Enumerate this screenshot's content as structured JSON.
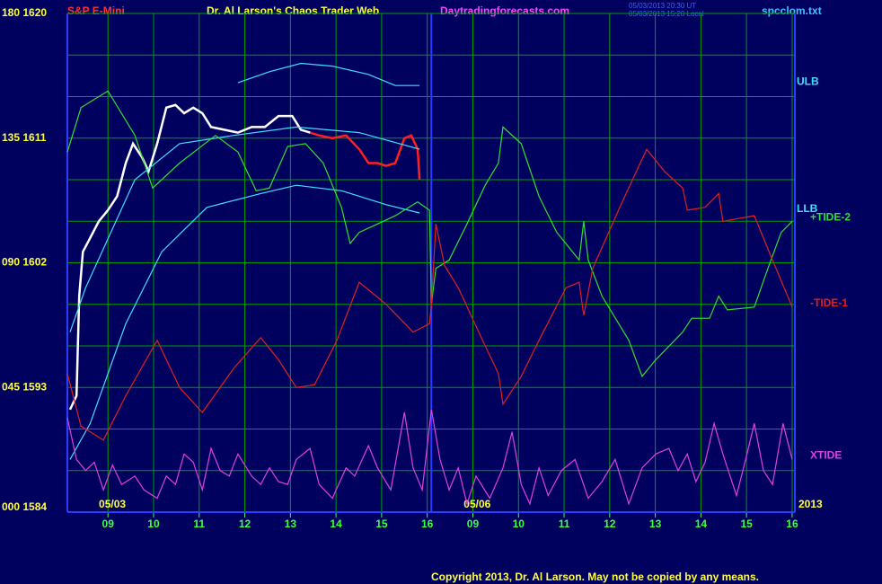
{
  "chart_data": {
    "type": "line",
    "header": {
      "instrument": "S&P E-Mini",
      "title": "Dr. Al Larson's Chaos Trader Web",
      "site": "Daytradingforecasts.com",
      "time_ut": "05/03/2013 20:30 UT",
      "time_local": "05/03/2013 15:20 Local",
      "file": "spcclom.txt"
    },
    "copyright": "Copyright 2013, Dr. Al Larson. May not be copied by any means.",
    "year_label": "2013",
    "xlim": [
      -0.89,
      15.06
    ],
    "ylim": [
      0,
      180
    ],
    "yticks": [
      {
        "value": 0,
        "label": "000 1584"
      },
      {
        "value": 45,
        "label": "045 1593"
      },
      {
        "value": 90,
        "label": "090 1602"
      },
      {
        "value": 135,
        "label": "135 1611"
      },
      {
        "value": 180,
        "label": "180 1620"
      }
    ],
    "ygrid": [
      15,
      30,
      60,
      75,
      105,
      120,
      150,
      165
    ],
    "xticks": [
      {
        "value": 0,
        "label": "09"
      },
      {
        "value": 1,
        "label": "10"
      },
      {
        "value": 2,
        "label": "11"
      },
      {
        "value": 3,
        "label": "12"
      },
      {
        "value": 4,
        "label": "13"
      },
      {
        "value": 5,
        "label": "14"
      },
      {
        "value": 6,
        "label": "15"
      },
      {
        "value": 7,
        "label": "16"
      },
      {
        "value": 8,
        "label": "09"
      },
      {
        "value": 9,
        "label": "10"
      },
      {
        "value": 10,
        "label": "11"
      },
      {
        "value": 11,
        "label": "12"
      },
      {
        "value": 12,
        "label": "13"
      },
      {
        "value": 13,
        "label": "14"
      },
      {
        "value": 14,
        "label": "15"
      },
      {
        "value": 15,
        "label": "16"
      }
    ],
    "date_labels": [
      {
        "value": -0.2,
        "label": "05/03"
      },
      {
        "value": 7.8,
        "label": "05/06"
      }
    ],
    "day_dividers": [
      -0.89,
      7.09,
      15.06
    ],
    "grid": true,
    "series": [
      {
        "color": "#ff2020",
        "x": [
          4.43,
          4.63,
          4.92,
          5.22,
          5.51,
          5.71,
          5.91,
          6.1,
          6.3,
          6.5,
          6.65,
          6.79,
          6.83
        ],
        "values": [
          137,
          136,
          135,
          136,
          131,
          126,
          126,
          125,
          126,
          135,
          136,
          131,
          120
        ]
      },
      {
        "color": "#ffffff",
        "x": [
          -0.83,
          -0.69,
          -0.63,
          -0.55,
          -0.39,
          -0.2,
          0,
          0.2,
          0.39,
          0.55,
          0.75,
          0.89,
          1.08,
          1.28,
          1.48,
          1.67,
          1.87,
          2.07,
          2.26,
          2.56,
          2.85,
          3.15,
          3.44,
          3.74,
          4.04,
          4.23,
          4.43
        ],
        "values": [
          37,
          42,
          78,
          94,
          99,
          105,
          109,
          114,
          126,
          133,
          128,
          123,
          133,
          146,
          147,
          144,
          146,
          144,
          139,
          138,
          137,
          139,
          139,
          143,
          143,
          138,
          137
        ]
      },
      {
        "name": "ULB",
        "color": "#40e0ff",
        "x": [
          2.85,
          3.54,
          4.23,
          4.92,
          5.71,
          6.3,
          6.83
        ],
        "values": [
          155,
          159,
          162,
          161,
          158,
          154,
          154
        ]
      },
      {
        "color": "#40e0ff",
        "x": [
          -0.83,
          -0.49,
          0.59,
          1.57,
          2.76,
          4.13,
          5.51,
          6.83
        ],
        "values": [
          65,
          81,
          120,
          133,
          136,
          139,
          137,
          131
        ]
      },
      {
        "name": "LLB",
        "color": "#40e0ff",
        "x": [
          -0.83,
          -0.39,
          0.39,
          1.18,
          2.17,
          3.35,
          4.13,
          5.12,
          6.1,
          6.83
        ],
        "values": [
          19,
          32,
          68,
          94,
          110,
          115,
          118,
          116,
          111,
          108
        ]
      },
      {
        "name": "+TIDE-2",
        "color": "#30e030",
        "x": [
          -0.89,
          -0.59,
          0,
          0.59,
          0.98,
          1.57,
          2.36,
          2.85,
          3.25,
          3.54,
          3.94,
          4.33,
          4.72,
          5.12,
          5.31,
          5.51,
          5.91,
          6.3,
          6.79,
          7.05,
          7.09,
          7.19,
          7.48,
          7.87,
          8.27,
          8.56,
          8.66,
          9.06,
          9.45,
          9.84,
          10.33,
          10.43,
          10.53,
          10.83,
          11.42,
          11.71,
          12.01,
          12.6,
          12.8,
          13.19,
          13.39,
          13.58,
          14.17,
          14.47,
          14.76,
          15.0
        ],
        "values": [
          130,
          146,
          152,
          136,
          117,
          126,
          136,
          130,
          116,
          117,
          132,
          133,
          126,
          110,
          97,
          101,
          104,
          107,
          112,
          109,
          75,
          88,
          91,
          104,
          118,
          126,
          139,
          133,
          114,
          101,
          91,
          105,
          91,
          78,
          62,
          49,
          55,
          65,
          70,
          70,
          78,
          73,
          74,
          88,
          101,
          105
        ]
      },
      {
        "name": "-TIDE-1",
        "color": "#e02020",
        "x": [
          -0.89,
          -0.59,
          -0.1,
          0.39,
          1.08,
          1.57,
          2.07,
          2.76,
          3.35,
          3.74,
          4.13,
          4.53,
          5.02,
          5.51,
          6.1,
          6.69,
          7.05,
          7.09,
          7.19,
          7.38,
          7.68,
          8.27,
          8.56,
          8.66,
          9.06,
          9.45,
          10.04,
          10.33,
          10.43,
          10.63,
          11.22,
          11.81,
          12.2,
          12.6,
          12.7,
          13.09,
          13.39,
          13.48,
          14.17,
          14.57,
          15.0
        ],
        "values": [
          50,
          31,
          26,
          42,
          62,
          45,
          36,
          52,
          63,
          55,
          45,
          46,
          62,
          83,
          75,
          65,
          68,
          75,
          104,
          89,
          81,
          60,
          50,
          39,
          49,
          62,
          81,
          83,
          71,
          88,
          110,
          131,
          123,
          117,
          109,
          110,
          115,
          105,
          107,
          91,
          74
        ]
      },
      {
        "name": "XTIDE",
        "color": "#e040e0",
        "x": [
          -0.89,
          -0.69,
          -0.49,
          -0.3,
          -0.1,
          0.1,
          0.3,
          0.59,
          0.79,
          1.08,
          1.28,
          1.48,
          1.67,
          1.87,
          2.07,
          2.26,
          2.46,
          2.66,
          2.85,
          3.15,
          3.35,
          3.54,
          3.74,
          3.94,
          4.13,
          4.43,
          4.63,
          4.92,
          5.22,
          5.41,
          5.71,
          5.91,
          6.2,
          6.5,
          6.69,
          6.89,
          7.09,
          7.28,
          7.48,
          7.68,
          7.87,
          8.07,
          8.37,
          8.66,
          8.86,
          9.06,
          9.25,
          9.45,
          9.65,
          9.94,
          10.24,
          10.53,
          10.83,
          11.12,
          11.42,
          11.71,
          12.01,
          12.3,
          12.5,
          12.7,
          12.89,
          13.09,
          13.29,
          13.48,
          13.78,
          13.98,
          14.17,
          14.37,
          14.57,
          14.8,
          15.0
        ],
        "values": [
          34,
          19,
          15,
          18,
          8,
          17,
          10,
          13,
          8,
          5,
          13,
          10,
          21,
          18,
          8,
          23,
          15,
          13,
          21,
          13,
          10,
          16,
          11,
          10,
          19,
          23,
          10,
          5,
          16,
          13,
          24,
          16,
          8,
          36,
          16,
          8,
          37,
          19,
          8,
          16,
          3,
          13,
          5,
          16,
          29,
          10,
          3,
          16,
          6,
          15,
          19,
          5,
          11,
          19,
          3,
          16,
          21,
          23,
          15,
          21,
          11,
          18,
          32,
          21,
          6,
          19,
          32,
          15,
          10,
          32,
          19
        ]
      }
    ]
  }
}
